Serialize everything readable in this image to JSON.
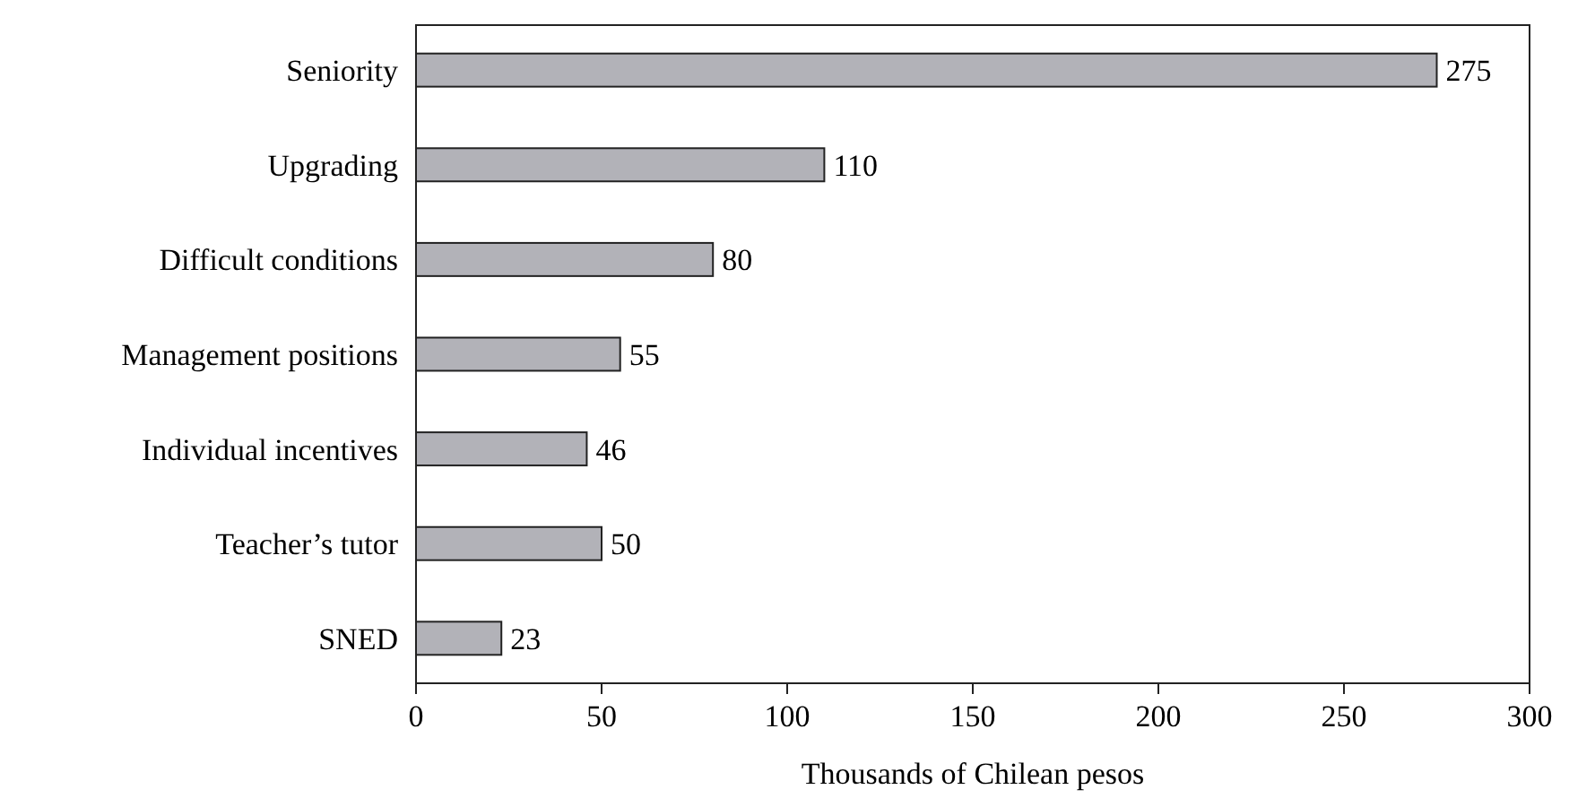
{
  "chart_data": {
    "type": "bar",
    "orientation": "horizontal",
    "xlabel": "Thousands of Chilean pesos",
    "categories": [
      "Seniority",
      "Upgrading",
      "Difficult conditions",
      "Management positions",
      "Individual incentives",
      "Teacher’s tutor",
      "SNED"
    ],
    "values": [
      275,
      110,
      80,
      55,
      46,
      50,
      23
    ],
    "color": "#b2b2b8",
    "data_labels": true,
    "xlim": [
      0,
      300
    ],
    "xticks": [
      0,
      50,
      100,
      150,
      200,
      250,
      300
    ],
    "grid": false
  }
}
